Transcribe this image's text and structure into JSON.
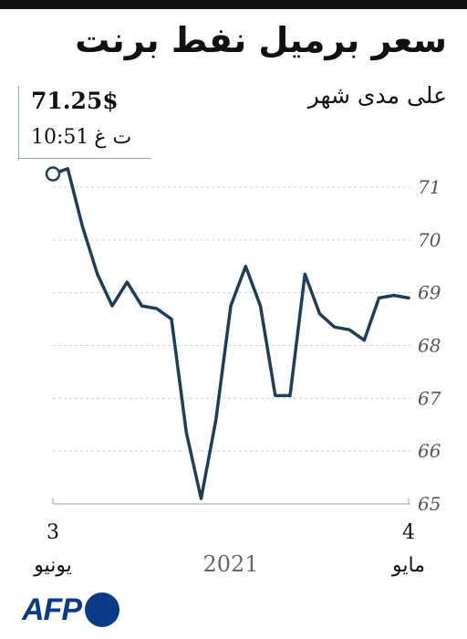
{
  "colors": {
    "line": "#1f3e57",
    "grid": "#c9d2da",
    "axis": "#9aa5ad",
    "logo": "#0b3a86",
    "callout_border": "#8fa7b8"
  },
  "header": {
    "title": "سعر برميل نفط برنت",
    "subtitle": "على مدى شهر"
  },
  "callout": {
    "price": "71.25$",
    "time": "10:51",
    "time_suffix": "ت غ"
  },
  "logo": {
    "text": "AFP"
  },
  "chart_data": {
    "type": "line",
    "title": "سعر برميل نفط برنت",
    "subtitle": "على مدى شهر",
    "ylim": [
      65,
      71.5
    ],
    "yticks": [
      65,
      66,
      67,
      68,
      69,
      70,
      71
    ],
    "grid": true,
    "x_labels": [
      {
        "day": "3",
        "month": "يونيو",
        "position": "left"
      },
      {
        "day": "4",
        "month": "مايو",
        "position": "right"
      }
    ],
    "year_label": "2021",
    "series": [
      {
        "values": [
          71.25,
          71.35,
          70.25,
          69.35,
          68.75,
          69.2,
          68.75,
          68.7,
          68.5,
          66.35,
          65.1,
          66.6,
          68.75,
          69.5,
          68.75,
          67.05,
          67.05,
          69.35,
          68.6,
          68.35,
          68.3,
          68.1,
          68.9,
          68.95,
          68.9
        ]
      }
    ]
  }
}
